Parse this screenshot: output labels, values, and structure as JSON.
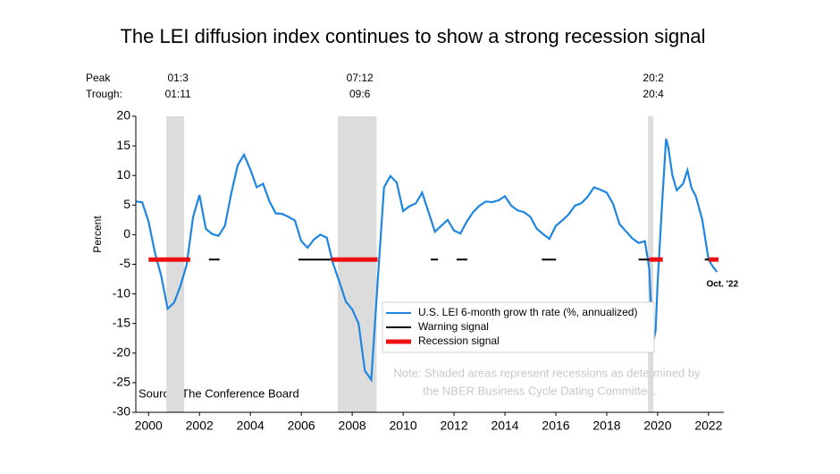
{
  "chart_data": {
    "type": "line",
    "title": "The LEI diffusion index continues to show a strong recession signal",
    "y_label": "Percent",
    "xlim": [
      1999.5,
      2022.6
    ],
    "ylim": [
      -30,
      20
    ],
    "xticks": [
      2000,
      2002,
      2004,
      2006,
      2008,
      2010,
      2012,
      2014,
      2016,
      2018,
      2020,
      2022
    ],
    "yticks": [
      -30,
      -25,
      -20,
      -15,
      -10,
      -5,
      0,
      5,
      10,
      15,
      20
    ],
    "peak_label": "Peak",
    "trough_label": "Trough:",
    "recessions": [
      {
        "start": 2000.7,
        "end": 2001.4,
        "peak": "01:3",
        "trough": "01:11"
      },
      {
        "start": 2007.43,
        "end": 2008.96,
        "peak": "07:12",
        "trough": "09:6"
      },
      {
        "start": 2019.62,
        "end": 2019.83,
        "peak": "20:2",
        "trough": "20:4"
      }
    ],
    "series": [
      {
        "name": "U.S. LEI 6-month grow th rate (%, annualized)",
        "color": "#1f86e0",
        "x": [
          1999.5,
          1999.75,
          2000.0,
          2000.25,
          2000.5,
          2000.75,
          2001.0,
          2001.25,
          2001.5,
          2001.75,
          2002.0,
          2002.25,
          2002.5,
          2002.75,
          2003.0,
          2003.25,
          2003.5,
          2003.75,
          2004.0,
          2004.25,
          2004.5,
          2004.75,
          2005.0,
          2005.25,
          2005.5,
          2005.75,
          2006.0,
          2006.25,
          2006.5,
          2006.75,
          2007.0,
          2007.25,
          2007.5,
          2007.75,
          2008.0,
          2008.25,
          2008.5,
          2008.75,
          2009.0,
          2009.25,
          2009.5,
          2009.75,
          2010.0,
          2010.25,
          2010.5,
          2010.75,
          2011.0,
          2011.25,
          2011.5,
          2011.75,
          2012.0,
          2012.25,
          2012.5,
          2012.75,
          2013.0,
          2013.25,
          2013.5,
          2013.75,
          2014.0,
          2014.25,
          2014.5,
          2014.75,
          2015.0,
          2015.25,
          2015.5,
          2015.75,
          2016.0,
          2016.25,
          2016.5,
          2016.75,
          2017.0,
          2017.25,
          2017.5,
          2017.75,
          2018.0,
          2018.25,
          2018.5,
          2018.75,
          2019.0,
          2019.25,
          2019.5,
          2019.67,
          2019.75,
          2019.83,
          2019.92,
          2020.0,
          2020.17,
          2020.33,
          2020.42,
          2020.58,
          2020.75,
          2021.0,
          2021.17,
          2021.33,
          2021.5,
          2021.75,
          2022.0,
          2022.17,
          2022.33
        ],
        "values": [
          5.6,
          5.5,
          2.2,
          -3.0,
          -7.0,
          -12.5,
          -11.5,
          -8.7,
          -5.0,
          3.0,
          6.7,
          1.0,
          0.1,
          -0.2,
          1.5,
          7.0,
          11.7,
          13.5,
          11.0,
          8.0,
          8.6,
          5.6,
          3.6,
          3.5,
          3.0,
          2.4,
          -1.1,
          -2.2,
          -0.8,
          0.0,
          -0.5,
          -4.9,
          -8.0,
          -11.3,
          -12.6,
          -15.0,
          -23.0,
          -24.5,
          -8.0,
          8.0,
          9.9,
          8.8,
          4.0,
          4.8,
          5.3,
          7.1,
          3.8,
          0.5,
          1.5,
          2.5,
          0.7,
          0.2,
          2.2,
          3.8,
          4.9,
          5.6,
          5.5,
          5.8,
          6.5,
          4.9,
          4.1,
          3.8,
          3.0,
          1.0,
          0.1,
          -0.7,
          1.5,
          2.4,
          3.4,
          4.9,
          5.3,
          6.4,
          8.0,
          7.6,
          7.1,
          5.2,
          1.8,
          0.6,
          -0.6,
          -1.4,
          -1.1,
          -5.7,
          -13.2,
          -18.0,
          -16.2,
          -8.0,
          4.9,
          16.2,
          14.7,
          10.0,
          7.5,
          8.6,
          10.9,
          7.9,
          6.5,
          2.6,
          -4.2,
          -5.4,
          -6.3
        ]
      },
      {
        "name": "Warning signal",
        "color": "#000000",
        "level": -4.2,
        "segments": [
          [
            2002.37,
            2002.79
          ],
          [
            2005.89,
            2007.19
          ],
          [
            2011.09,
            2011.37
          ],
          [
            2012.1,
            2012.52
          ],
          [
            2015.45,
            2016.01
          ],
          [
            2019.25,
            2019.67
          ],
          [
            2021.85,
            2022.01
          ]
        ]
      },
      {
        "name": "Recession signal",
        "color": "#ee1111",
        "level": -4.2,
        "segments": [
          [
            2000.0,
            2001.64
          ],
          [
            2007.19,
            2009.0
          ],
          [
            2019.67,
            2020.2
          ],
          [
            2022.01,
            2022.39
          ]
        ]
      }
    ],
    "last_label": "Oct. '22",
    "source": "Source: The Conference Board",
    "note": [
      "Note: Shaded areas represent recessions as determined by",
      "the NBER Business Cycle Dating Committee."
    ]
  }
}
